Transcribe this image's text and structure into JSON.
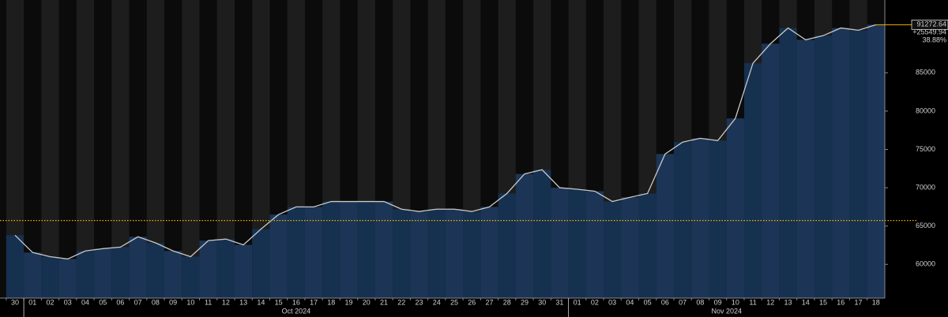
{
  "chart_data": {
    "type": "area",
    "categories": [
      "30",
      "01",
      "02",
      "03",
      "04",
      "05",
      "06",
      "07",
      "08",
      "09",
      "10",
      "11",
      "12",
      "13",
      "14",
      "15",
      "16",
      "17",
      "18",
      "19",
      "20",
      "21",
      "22",
      "23",
      "24",
      "25",
      "26",
      "27",
      "28",
      "29",
      "30",
      "31",
      "01",
      "02",
      "03",
      "04",
      "05",
      "06",
      "07",
      "08",
      "09",
      "10",
      "11",
      "12",
      "13",
      "14",
      "15",
      "16",
      "17",
      "18"
    ],
    "month_labels": [
      "Oct 2024",
      "Nov 2024"
    ],
    "series": [
      {
        "color": "#c8c8c8",
        "values": [
          63800,
          61550,
          61000,
          60700,
          61750,
          62050,
          62250,
          63600,
          62800,
          61750,
          61000,
          63100,
          63300,
          62550,
          64600,
          66500,
          67500,
          67500,
          68200,
          68200,
          68200,
          68200,
          67200,
          66900,
          67200,
          67200,
          66900,
          67500,
          69250,
          71800,
          72350,
          70000,
          69800,
          69550,
          68200,
          68750,
          69250,
          74400,
          75950,
          76450,
          76150,
          79050,
          86250,
          88800,
          90850,
          89300,
          89850,
          90850,
          90550,
          91272.64
        ]
      }
    ],
    "ylim": [
      55600,
      94500
    ],
    "yticks": [
      60000,
      65000,
      70000,
      75000,
      80000,
      85000
    ],
    "reference_line": 65722.7,
    "last_value": 91272.64,
    "change": {
      "value": 25549.94,
      "label": "+25549.94"
    },
    "change_pct": {
      "value": 38.88,
      "label": "38.88%"
    }
  }
}
